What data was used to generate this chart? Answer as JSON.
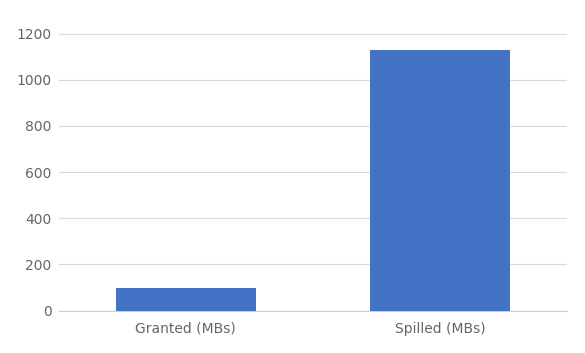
{
  "categories": [
    "Granted (MBs)",
    "Spilled (MBs)"
  ],
  "values": [
    100,
    1130
  ],
  "bar_color": "#4472C4",
  "ylim": [
    0,
    1300
  ],
  "yticks": [
    0,
    200,
    400,
    600,
    800,
    1000,
    1200
  ],
  "background_color": "#ffffff",
  "grid_color": "#d9d9d9",
  "bar_width": 0.55,
  "tick_label_fontsize": 10,
  "label_fontsize": 10,
  "xlim": [
    -0.5,
    1.5
  ]
}
